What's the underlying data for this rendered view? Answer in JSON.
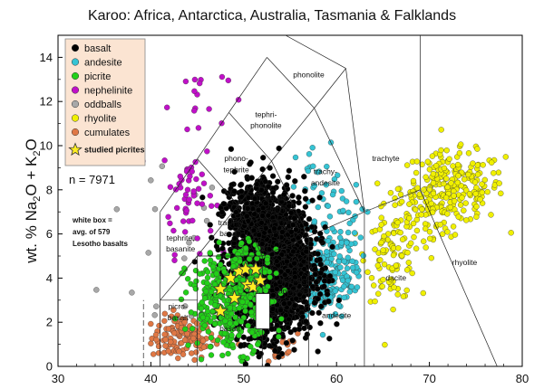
{
  "chart_data": {
    "type": "scatter",
    "title": "Karoo: Africa, Antarctica, Australia, Tasmania & Falklands",
    "xlabel": "",
    "ylabel_parts": [
      "wt. % Na",
      "2",
      "O + K",
      "2",
      "O"
    ],
    "xlim": [
      30,
      80
    ],
    "ylim": [
      0,
      15
    ],
    "x_ticks": [
      30,
      40,
      50,
      60,
      70,
      80
    ],
    "y_ticks": [
      0,
      2,
      4,
      6,
      8,
      10,
      12,
      14
    ],
    "sample_count_label": "n = 7971",
    "annotation_lines": [
      "white box =",
      "avg. of 579",
      "Lesotho basalts"
    ],
    "average_box": {
      "x_range": [
        51.3,
        52.8
      ],
      "y_range": [
        1.7,
        3.3
      ]
    },
    "fields": [
      {
        "name": "phonolite",
        "x": 57,
        "y": 13.1
      },
      {
        "name": "tephri-",
        "x": 52.4,
        "y": 11.3
      },
      {
        "name": "phonolite",
        "x": 52.4,
        "y": 10.8
      },
      {
        "name": "phono-",
        "x": 49.2,
        "y": 9.3
      },
      {
        "name": "tephrite",
        "x": 49.2,
        "y": 8.8
      },
      {
        "name": "trachyte",
        "x": 65.3,
        "y": 9.3
      },
      {
        "name": "trachy-",
        "x": 58.8,
        "y": 8.7
      },
      {
        "name": "andesite",
        "x": 58.8,
        "y": 8.2
      },
      {
        "name": "basaltic",
        "x": 53.8,
        "y": 7.5
      },
      {
        "name": "trachy-",
        "x": 53.8,
        "y": 7.0
      },
      {
        "name": "andesite",
        "x": 53.8,
        "y": 6.5
      },
      {
        "name": "tephrite,",
        "x": 43.2,
        "y": 5.7
      },
      {
        "name": "basanite",
        "x": 43.2,
        "y": 5.2
      },
      {
        "name": "trachy-",
        "x": 48.5,
        "y": 6.4
      },
      {
        "name": "basalt",
        "x": 48.5,
        "y": 5.9
      },
      {
        "name": "basaltic",
        "x": 55.3,
        "y": 3.8
      },
      {
        "name": "andesite",
        "x": 55.3,
        "y": 3.3
      },
      {
        "name": "picro-",
        "x": 42.9,
        "y": 2.6
      },
      {
        "name": "basalt",
        "x": 42.9,
        "y": 2.1
      },
      {
        "name": "basalt",
        "x": 48.5,
        "y": 1.6
      },
      {
        "name": "andesite",
        "x": 60.0,
        "y": 2.2
      },
      {
        "name": "dacite",
        "x": 66.4,
        "y": 3.9
      },
      {
        "name": "rhyolite",
        "x": 73.8,
        "y": 4.6
      }
    ],
    "legend": [
      {
        "label": "basalt",
        "color": "#000000"
      },
      {
        "label": "andesite",
        "color": "#35c4d4"
      },
      {
        "label": "picrite",
        "color": "#22d018"
      },
      {
        "label": "nephelinite",
        "color": "#c010c8"
      },
      {
        "label": "oddballs",
        "color": "#a8a8a8"
      },
      {
        "label": "rhyolite",
        "color": "#f0f000"
      },
      {
        "label": "cumulates",
        "color": "#e07845"
      },
      {
        "label": "studied picrites",
        "color": "#ffee22"
      }
    ],
    "legend_background": "#fbe4d2",
    "stars": [
      [
        47.5,
        3.5
      ],
      [
        48.6,
        4.0
      ],
      [
        49.5,
        4.3
      ],
      [
        50.2,
        4.4
      ],
      [
        51.3,
        4.4
      ],
      [
        49.0,
        3.1
      ],
      [
        50.4,
        3.7
      ],
      [
        51.0,
        3.6
      ],
      [
        51.8,
        3.9
      ],
      [
        47.5,
        2.5
      ]
    ],
    "series": [
      {
        "name": "basalt",
        "color": "#000000",
        "clusters": [
          {
            "cx": 53.0,
            "cy": 4.5,
            "sx": 2.2,
            "sy": 1.5,
            "n": 2200
          },
          {
            "cx": 51.5,
            "cy": 6.5,
            "sx": 1.6,
            "sy": 0.9,
            "n": 300
          },
          {
            "cx": 50.5,
            "cy": 7.6,
            "sx": 1.4,
            "sy": 0.6,
            "n": 60
          }
        ]
      },
      {
        "name": "picrite",
        "color": "#22d018",
        "clusters": [
          {
            "cx": 48.5,
            "cy": 2.9,
            "sx": 2.3,
            "sy": 1.1,
            "n": 320
          },
          {
            "cx": 50.5,
            "cy": 4.2,
            "sx": 1.2,
            "sy": 0.8,
            "n": 70
          }
        ]
      },
      {
        "name": "andesite",
        "color": "#35c4d4",
        "clusters": [
          {
            "cx": 58.8,
            "cy": 4.0,
            "sx": 1.5,
            "sy": 0.9,
            "n": 180
          },
          {
            "cx": 60.0,
            "cy": 5.8,
            "sx": 1.5,
            "sy": 1.2,
            "n": 70
          },
          {
            "cx": 58.3,
            "cy": 8.0,
            "sx": 1.3,
            "sy": 1.0,
            "n": 25
          }
        ]
      },
      {
        "name": "rhyolite",
        "color": "#f0f000",
        "clusters": [
          {
            "cx": 72.5,
            "cy": 8.1,
            "sx": 2.8,
            "sy": 0.8,
            "n": 220
          },
          {
            "cx": 66.0,
            "cy": 5.0,
            "sx": 1.4,
            "sy": 1.0,
            "n": 90
          },
          {
            "cx": 69.0,
            "cy": 6.7,
            "sx": 2.0,
            "sy": 0.8,
            "n": 60
          }
        ]
      },
      {
        "name": "nephelinite",
        "color": "#c010c8",
        "clusters": [
          {
            "cx": 44.0,
            "cy": 7.8,
            "sx": 1.4,
            "sy": 1.3,
            "n": 55
          },
          {
            "cx": 45.0,
            "cy": 12.3,
            "sx": 1.6,
            "sy": 0.8,
            "n": 14
          }
        ]
      },
      {
        "name": "cumulates",
        "color": "#e07845",
        "clusters": [
          {
            "cx": 43.5,
            "cy": 1.3,
            "sx": 1.7,
            "sy": 0.5,
            "n": 120
          },
          {
            "cx": 52.5,
            "cy": 0.9,
            "sx": 2.2,
            "sy": 0.4,
            "n": 20
          }
        ]
      },
      {
        "name": "oddballs",
        "color": "#a8a8a8",
        "clusters": [
          {
            "cx": 45.0,
            "cy": 6.0,
            "sx": 5.0,
            "sy": 3.0,
            "n": 22
          }
        ]
      }
    ]
  }
}
